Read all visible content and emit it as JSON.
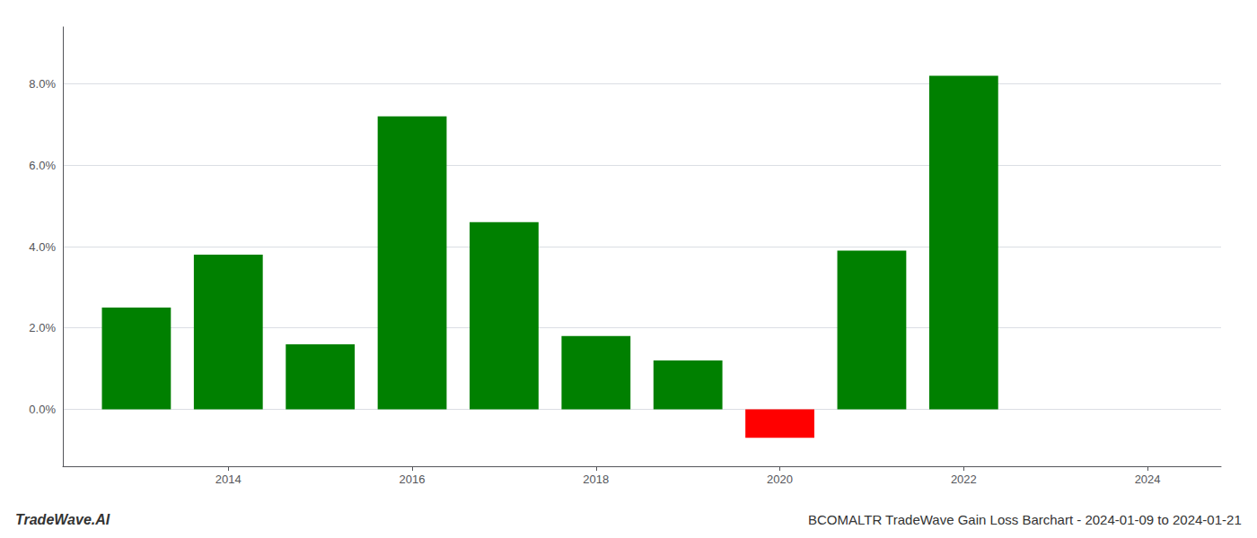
{
  "chart_data": {
    "type": "bar",
    "title": "BCOMALTR TradeWave Gain Loss Barchart - 2024-01-09 to 2024-01-21",
    "annotations": [
      "TradeWave.AI"
    ],
    "x": [
      2013,
      2014,
      2015,
      2016,
      2017,
      2018,
      2019,
      2020,
      2021,
      2022,
      2023
    ],
    "values": [
      0.025,
      0.038,
      0.016,
      0.072,
      0.046,
      0.018,
      0.012,
      -0.007,
      0.039,
      0.082,
      0.0
    ],
    "colors": [
      "#008000",
      "#008000",
      "#008000",
      "#008000",
      "#008000",
      "#008000",
      "#008000",
      "#ff0000",
      "#008000",
      "#008000",
      "#008000"
    ],
    "xlim": [
      2012.2,
      2024.8
    ],
    "xticks": [
      2014,
      2016,
      2018,
      2020,
      2022,
      2024
    ],
    "ylim": [
      -0.014,
      0.094
    ],
    "yticks": [
      {
        "value": 0.0,
        "label": "0.0%"
      },
      {
        "value": 0.02,
        "label": "2.0%"
      },
      {
        "value": 0.04,
        "label": "4.0%"
      },
      {
        "value": 0.06,
        "label": "6.0%"
      },
      {
        "value": 0.08,
        "label": "8.0%"
      }
    ],
    "grid": true
  }
}
